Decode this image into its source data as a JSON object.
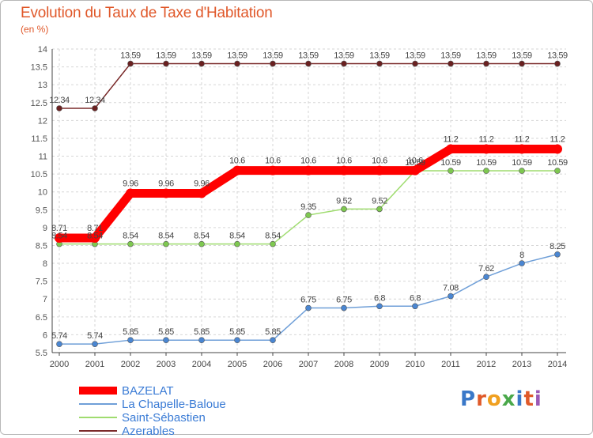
{
  "title": "Evolution du Taux de Taxe d'Habitation",
  "subtitle": "(en %)",
  "logo_text": "Proxiti",
  "chart_data": {
    "type": "line",
    "title": "Evolution du Taux de Taxe d'Habitation",
    "ylabel": "(en %)",
    "xlabel": "",
    "ylim": [
      5.5,
      14
    ],
    "ytick_step": 0.5,
    "grid": true,
    "legend_position": "bottom-left",
    "x": [
      "2000",
      "2001",
      "2002",
      "2003",
      "2004",
      "2005",
      "2006",
      "2007",
      "2008",
      "2009",
      "2010",
      "2011",
      "2012",
      "2013",
      "2014"
    ],
    "series": [
      {
        "name": "BAZELAT",
        "color": "#ff0000",
        "marker": "#ff0000",
        "values": [
          8.71,
          8.71,
          9.96,
          9.96,
          9.96,
          10.6,
          10.6,
          10.6,
          10.6,
          10.6,
          10.6,
          11.2,
          11.2,
          11.2,
          11.2
        ],
        "labels": [
          "8.71",
          "8.71",
          "9.96",
          "9.96",
          "9.96",
          "10.6",
          "10.6",
          "10.6",
          "10.6",
          "10.6",
          "10.6",
          "11.2",
          "11.2",
          "11.2",
          "11.2"
        ]
      },
      {
        "name": "La Chapelle-Baloue",
        "color": "#6f9fd8",
        "marker": "#4a86d2",
        "values": [
          5.74,
          5.74,
          5.85,
          5.85,
          5.85,
          5.85,
          5.85,
          6.75,
          6.75,
          6.8,
          6.8,
          7.08,
          7.62,
          8,
          8.25
        ],
        "labels": [
          "5.74",
          "5.74",
          "5.85",
          "5.85",
          "5.85",
          "5.85",
          "5.85",
          "6.75",
          "6.75",
          "6.8",
          "6.8",
          "7.08",
          "7.62",
          "8",
          "8.25"
        ]
      },
      {
        "name": "Saint-Sébastien",
        "color": "#9fdc6f",
        "marker": "#7ec850",
        "values": [
          8.54,
          8.54,
          8.54,
          8.54,
          8.54,
          8.54,
          8.54,
          9.35,
          9.52,
          9.52,
          10.59,
          10.59,
          10.59,
          10.59,
          10.59
        ],
        "labels": [
          "8.54",
          "8.54",
          "8.54",
          "8.54",
          "8.54",
          "8.54",
          "8.54",
          "9.35",
          "9.52",
          "9.52",
          "10.59",
          "10.59",
          "10.59",
          "10.59",
          "10.59"
        ]
      },
      {
        "name": "Azerables",
        "color": "#7a2a2a",
        "marker": "#6a2020",
        "values": [
          12.34,
          12.34,
          13.59,
          13.59,
          13.59,
          13.59,
          13.59,
          13.59,
          13.59,
          13.59,
          13.59,
          13.59,
          13.59,
          13.59,
          13.59
        ],
        "labels": [
          "12.34",
          "12.34",
          "13.59",
          "13.59",
          "13.59",
          "13.59",
          "13.59",
          "13.59",
          "13.59",
          "13.59",
          "13.59",
          "13.59",
          "13.59",
          "13.59",
          "13.59"
        ]
      }
    ]
  }
}
